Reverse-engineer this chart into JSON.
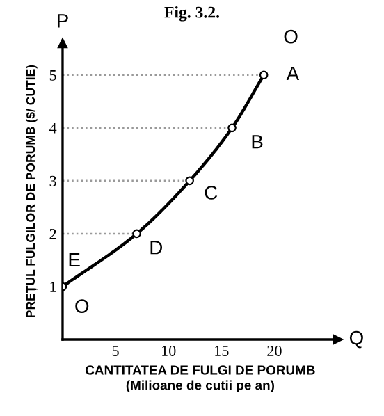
{
  "chart_data": {
    "type": "line",
    "title": "Fig. 3.2.",
    "xlabel": "CANTITATEA DE FULGI DE PORUMB\n(Milioane de cutii pe an)",
    "ylabel": "PREȚUL FULGILOR DE PORUMB ($/ CUTIE)",
    "x": [
      0,
      7,
      12,
      16,
      19
    ],
    "series": [
      {
        "color": "#000000",
        "values": [
          1,
          2,
          3,
          4,
          5
        ]
      }
    ],
    "marker": "circle",
    "xlim": [
      0,
      26
    ],
    "ylim": [
      0,
      5.6
    ],
    "xticks": [
      5,
      10,
      15,
      20
    ],
    "yticks": [
      1,
      2,
      3,
      4,
      5
    ],
    "grid": "y",
    "legend": false,
    "annotations": [
      "P",
      "Q",
      {
        "text": "A",
        "x": 19,
        "y": 5
      },
      {
        "text": "B",
        "x": 16,
        "y": 4
      },
      {
        "text": "C",
        "x": 12,
        "y": 3
      },
      {
        "text": "D",
        "x": 7,
        "y": 2
      },
      {
        "text": "E",
        "x": 0,
        "y": 1
      },
      {
        "text": "O",
        "x": 0,
        "y": 1
      },
      {
        "text": "O",
        "x": 19,
        "y": 5
      }
    ]
  }
}
